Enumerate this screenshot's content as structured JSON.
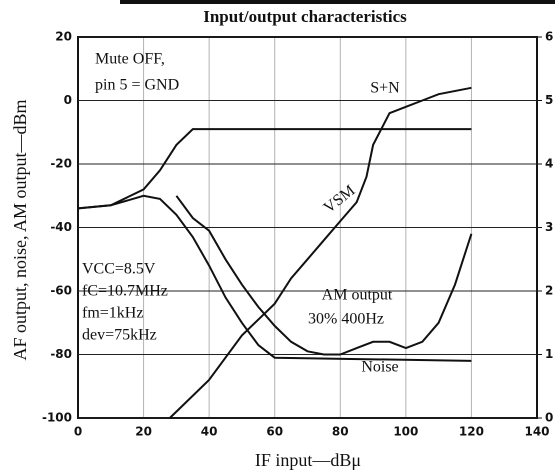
{
  "chart_data": {
    "type": "line",
    "title": "Input/output characteristics",
    "xlabel": "IF input—dBμ",
    "ylabel": "AF output, noise, AM output—dBm",
    "xlim": [
      0,
      140
    ],
    "xticks": [
      0,
      20,
      40,
      60,
      80,
      100,
      120,
      140
    ],
    "ylim": [
      -100,
      20
    ],
    "yticks": [
      -100,
      -80,
      -60,
      -40,
      -20,
      0,
      20
    ],
    "y2lim": [
      0,
      6
    ],
    "y2ticks": [
      0,
      1,
      2,
      3,
      4,
      5,
      6
    ],
    "grid": true,
    "series": [
      {
        "name": "S+N",
        "color": "#111111",
        "x": [
          0,
          10,
          20,
          25,
          30,
          35,
          40,
          120
        ],
        "values": [
          -34,
          -33,
          -28,
          -22,
          -14,
          -9,
          -9,
          -9
        ]
      },
      {
        "name": "Noise",
        "color": "#111111",
        "x": [
          0,
          10,
          20,
          25,
          30,
          35,
          40,
          45,
          50,
          55,
          60,
          120
        ],
        "values": [
          -34,
          -33,
          -30,
          -31,
          -36,
          -43,
          -52,
          -62,
          -70,
          -77,
          -81,
          -82
        ]
      },
      {
        "name": "AM output",
        "color": "#111111",
        "x": [
          30,
          35,
          40,
          45,
          50,
          55,
          60,
          65,
          70,
          75,
          80,
          85,
          90,
          95,
          100,
          105,
          110,
          115,
          120
        ],
        "values": [
          -30,
          -37,
          -41,
          -50,
          -58,
          -65,
          -71,
          -76,
          -79,
          -80,
          -80,
          -78,
          -76,
          -76,
          -78,
          -76,
          -70,
          -58,
          -42
        ]
      },
      {
        "name": "VSM",
        "color": "#111111",
        "axis": "y2",
        "x": [
          28,
          30,
          40,
          50,
          60,
          65,
          70,
          75,
          80,
          85,
          88,
          90,
          95,
          100,
          105,
          110,
          120
        ],
        "values": [
          0,
          0.1,
          0.6,
          1.3,
          1.8,
          2.2,
          2.5,
          2.8,
          3.1,
          3.4,
          3.8,
          4.3,
          4.8,
          4.9,
          5.0,
          5.1,
          5.2
        ]
      }
    ],
    "annotations": [
      "Mute OFF,",
      "pin 5 = GND",
      "30% 400Hz",
      "VCC=8.5V",
      "fC=10.7MHz",
      "fm=1kHz",
      "dev=75kHz"
    ]
  }
}
